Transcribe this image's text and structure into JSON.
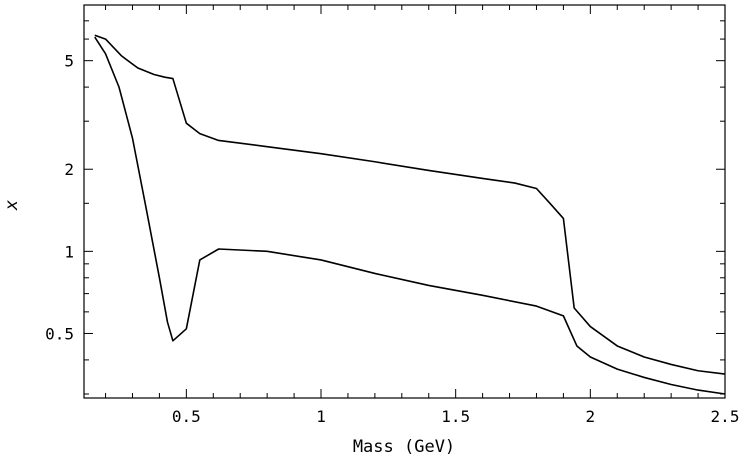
{
  "chart_data": {
    "type": "line",
    "title": "",
    "xlabel": "Mass (GeV)",
    "ylabel": "x",
    "xlim": [
      0.12,
      2.5
    ],
    "ylim": [
      0.29,
      8.0
    ],
    "yscale": "log",
    "grid": false,
    "legend": "none",
    "x_major_ticks": [
      0.5,
      1,
      1.5,
      2,
      2.5
    ],
    "x_tick_labels": [
      "0.5",
      "1",
      "1.5",
      "2",
      "2.5"
    ],
    "y_major_ticks": [
      0.5,
      1,
      2,
      5
    ],
    "y_tick_labels": [
      "0.5",
      "1",
      "2",
      "5"
    ],
    "series": [
      {
        "x": [
          0.16,
          0.2,
          0.26,
          0.32,
          0.38,
          0.42,
          0.45,
          0.5,
          0.55,
          0.62,
          0.8,
          1.0,
          1.2,
          1.4,
          1.6,
          1.72,
          1.8,
          1.85,
          1.9,
          1.94,
          2.0,
          2.1,
          2.2,
          2.3,
          2.4,
          2.5
        ],
        "y": [
          6.2,
          6.0,
          5.2,
          4.7,
          4.45,
          4.35,
          4.3,
          2.95,
          2.7,
          2.55,
          2.42,
          2.28,
          2.13,
          1.98,
          1.85,
          1.78,
          1.7,
          1.5,
          1.32,
          0.62,
          0.53,
          0.45,
          0.41,
          0.385,
          0.365,
          0.355
        ]
      },
      {
        "x": [
          0.16,
          0.2,
          0.25,
          0.3,
          0.35,
          0.4,
          0.43,
          0.45,
          0.5,
          0.55,
          0.62,
          0.8,
          1.0,
          1.2,
          1.4,
          1.6,
          1.8,
          1.9,
          1.95,
          2.0,
          2.1,
          2.2,
          2.3,
          2.4,
          2.5
        ],
        "y": [
          6.1,
          5.3,
          4.0,
          2.6,
          1.45,
          0.8,
          0.55,
          0.47,
          0.52,
          0.93,
          1.02,
          1.0,
          0.93,
          0.83,
          0.75,
          0.69,
          0.63,
          0.58,
          0.45,
          0.41,
          0.37,
          0.345,
          0.325,
          0.31,
          0.3
        ]
      }
    ]
  }
}
